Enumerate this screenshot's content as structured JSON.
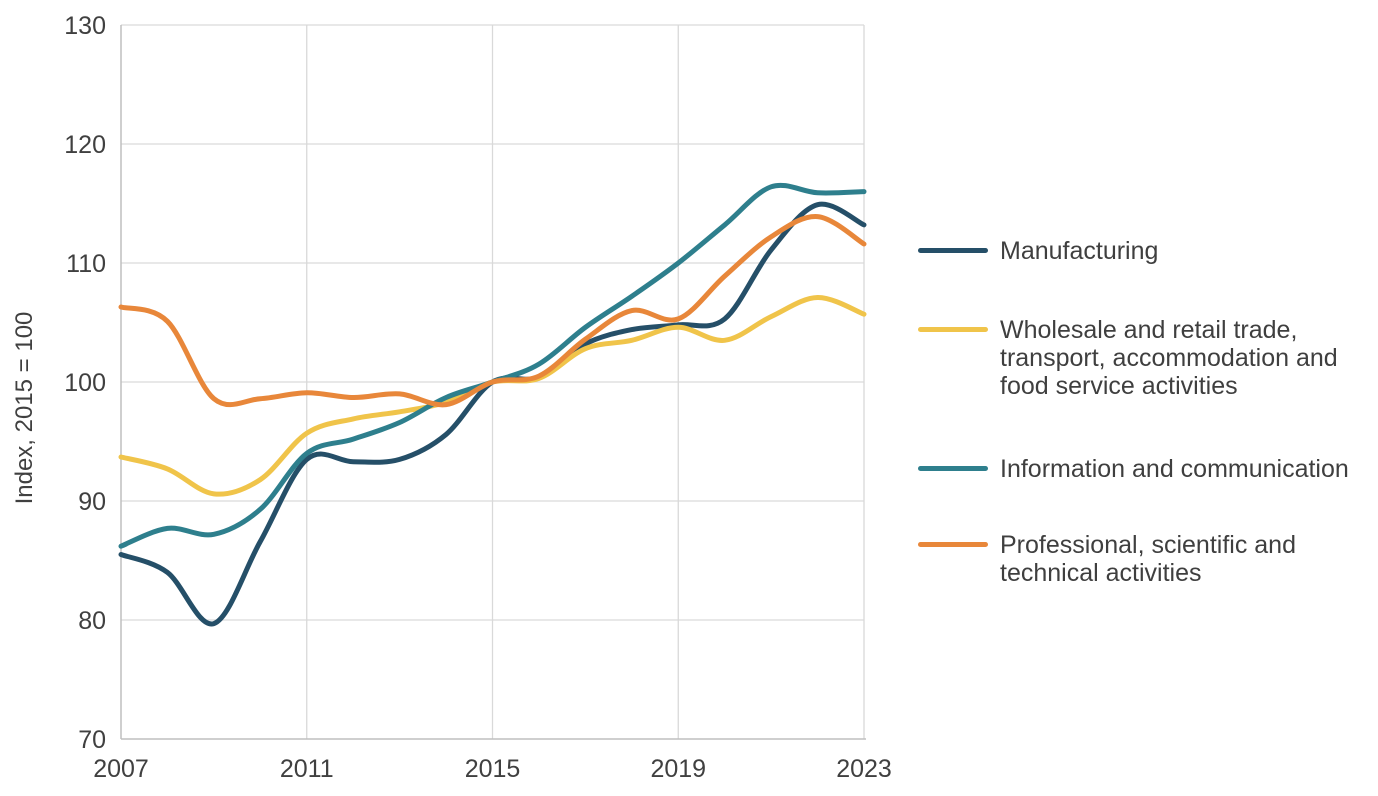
{
  "chart_data": {
    "type": "line",
    "title": "",
    "xlabel": "",
    "ylabel": "Index, 2015 = 100",
    "xlim": [
      2007,
      2023
    ],
    "ylim": [
      70,
      130
    ],
    "x_ticks": [
      2007,
      2011,
      2015,
      2019,
      2023
    ],
    "y_ticks": [
      70,
      80,
      90,
      100,
      110,
      120,
      130
    ],
    "grid": true,
    "legend_position": "right",
    "x": [
      2007,
      2008,
      2009,
      2010,
      2011,
      2012,
      2013,
      2014,
      2015,
      2016,
      2017,
      2018,
      2019,
      2020,
      2021,
      2022,
      2023
    ],
    "series": [
      {
        "key": "manufacturing",
        "name": "Manufacturing",
        "color": "#254f68",
        "values": [
          85.5,
          84.0,
          79.7,
          86.6,
          93.5,
          93.3,
          93.5,
          95.6,
          100,
          100.4,
          103.2,
          104.4,
          104.8,
          105.3,
          111.1,
          114.9,
          113.2
        ]
      },
      {
        "key": "wholesale",
        "name": "Wholesale and retail trade, transport, accommodation and food service activities",
        "color": "#f0c44a",
        "values": [
          93.7,
          92.7,
          90.6,
          91.8,
          95.7,
          96.9,
          97.5,
          98.3,
          100,
          100.3,
          102.8,
          103.5,
          104.6,
          103.5,
          105.5,
          107.1,
          105.7
        ]
      },
      {
        "key": "information",
        "name": "Information and communication",
        "color": "#2e7f8d",
        "values": [
          86.2,
          87.7,
          87.2,
          89.3,
          94.0,
          95.2,
          96.6,
          98.7,
          100,
          101.5,
          104.6,
          107.2,
          110.0,
          113.2,
          116.4,
          115.9,
          116.0
        ]
      },
      {
        "key": "professional",
        "name": "Professional, scientific and technical activities",
        "color": "#e8873a",
        "values": [
          106.3,
          105.1,
          98.6,
          98.6,
          99.1,
          98.7,
          99.0,
          98.1,
          100,
          100.5,
          103.6,
          106.0,
          105.3,
          108.9,
          112.2,
          113.9,
          111.6
        ]
      }
    ],
    "colors": {
      "grid": "#d9d9d9",
      "axis": "#bfbfbf",
      "tick_text": "#404040"
    }
  }
}
